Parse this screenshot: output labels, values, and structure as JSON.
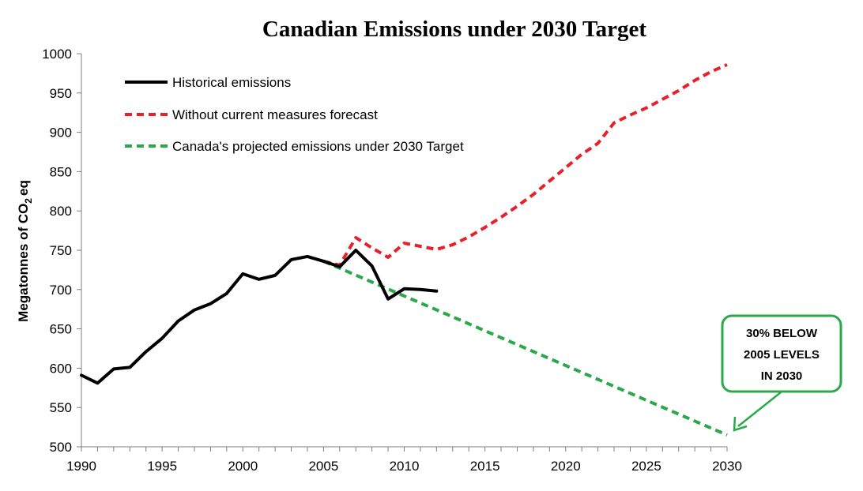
{
  "chart_data": {
    "type": "line",
    "title": "Canadian Emissions under 2030 Target",
    "ylabel_parts": [
      "Megatonnes of CO",
      "2",
      "eq"
    ],
    "xlim": [
      1990,
      2030
    ],
    "ylim": [
      500,
      1000
    ],
    "x_ticks": [
      1990,
      1995,
      2000,
      2005,
      2010,
      2015,
      2020,
      2025,
      2030
    ],
    "y_ticks": [
      500,
      550,
      600,
      650,
      700,
      750,
      800,
      850,
      900,
      950,
      1000
    ],
    "legend_position": "top-left",
    "grid": false,
    "series": [
      {
        "name": "Historical emissions",
        "color": "#000000",
        "style": "solid",
        "x": [
          1990,
          1991,
          1992,
          1993,
          1994,
          1995,
          1996,
          1997,
          1998,
          1999,
          2000,
          2001,
          2002,
          2003,
          2004,
          2005,
          2006,
          2007,
          2008,
          2009,
          2010,
          2011,
          2012
        ],
        "y": [
          591,
          581,
          599,
          601,
          621,
          638,
          660,
          674,
          682,
          695,
          720,
          713,
          718,
          738,
          742,
          736,
          729,
          750,
          730,
          688,
          701,
          700,
          698
        ]
      },
      {
        "name": "Without current measures forecast",
        "color": "#e8202a",
        "style": "dashed",
        "x": [
          2005,
          2006,
          2007,
          2008,
          2009,
          2010,
          2011,
          2012,
          2013,
          2014,
          2015,
          2016,
          2017,
          2018,
          2019,
          2020,
          2021,
          2022,
          2023,
          2024,
          2025,
          2026,
          2027,
          2028,
          2029,
          2030
        ],
        "y": [
          736,
          731,
          766,
          753,
          741,
          759,
          755,
          751,
          757,
          767,
          779,
          792,
          806,
          821,
          838,
          855,
          872,
          886,
          912,
          922,
          931,
          942,
          953,
          966,
          977,
          986
        ]
      },
      {
        "name": "Canada's projected emissions under 2030 Target",
        "color": "#2aa84a",
        "style": "dashed",
        "x": [
          2005,
          2030
        ],
        "y": [
          736,
          515
        ]
      }
    ],
    "annotations": [
      {
        "lines": [
          "30% BELOW",
          "2005 LEVELS",
          "IN 2030"
        ],
        "color": "#2aa84a",
        "points_to": {
          "x": 2030,
          "y": 515
        }
      }
    ]
  }
}
